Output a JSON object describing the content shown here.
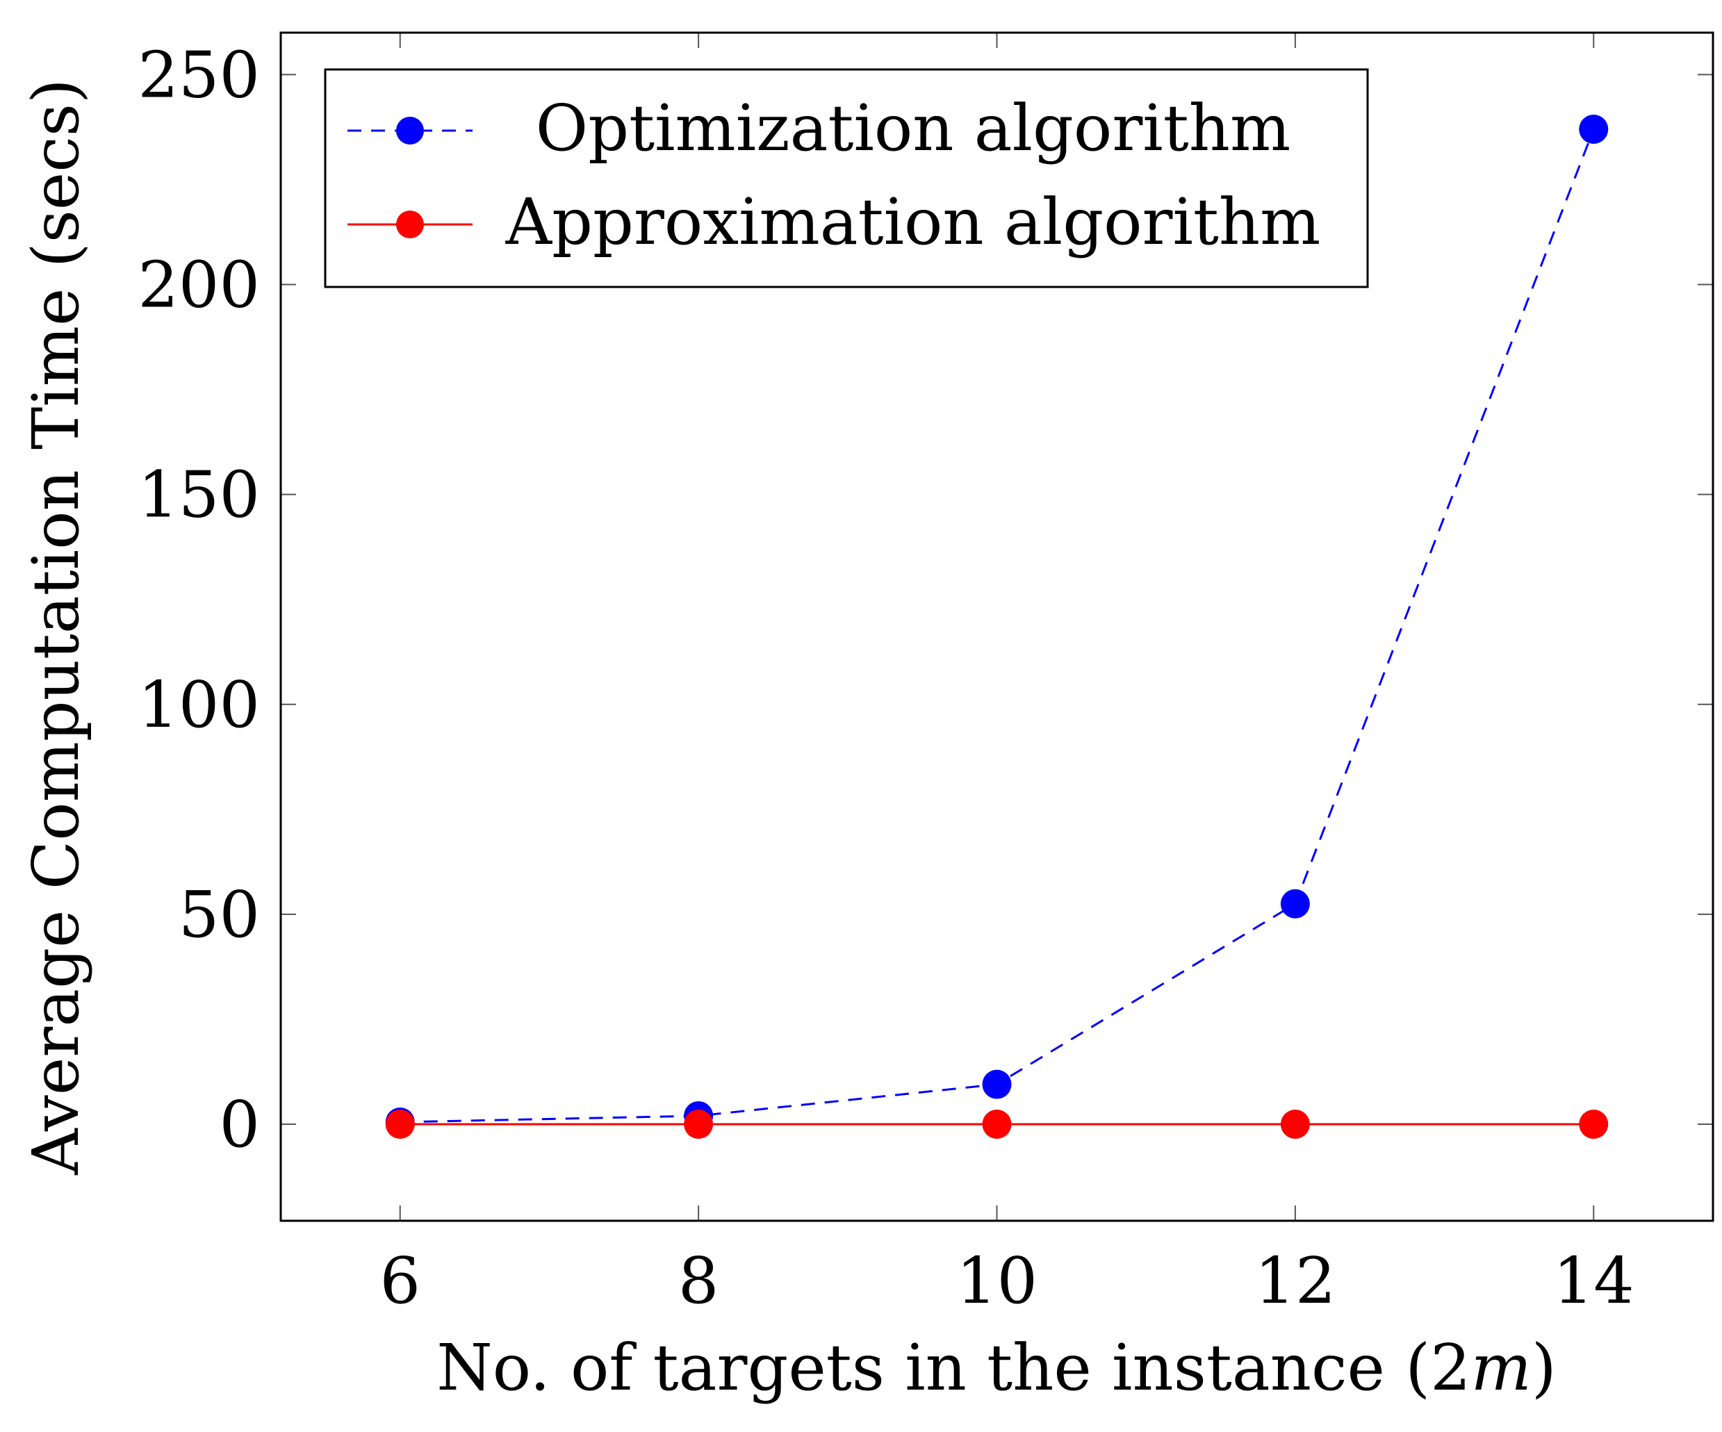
{
  "chart_data": {
    "type": "line",
    "title": "",
    "xlabel": "No. of targets in the instance (2m)",
    "xlabel_parts": {
      "prefix": "No. of targets in the instance (2",
      "italic": "m",
      "suffix": ")"
    },
    "ylabel": "Average Computation Time (secs)",
    "x": [
      6,
      8,
      10,
      12,
      14
    ],
    "xlim": [
      5.2,
      14.8
    ],
    "ylim": [
      -23,
      260
    ],
    "xticks": [
      6,
      8,
      10,
      12,
      14
    ],
    "yticks": [
      0,
      50,
      100,
      150,
      200,
      250
    ],
    "grid": false,
    "legend_position": "top-left",
    "series": [
      {
        "name": "Optimization algorithm",
        "values": [
          0.5,
          2,
          9.5,
          52.5,
          237
        ],
        "color": "#0000ff",
        "line_style": "dashed",
        "marker": "circle"
      },
      {
        "name": "Approximation algorithm",
        "values": [
          0,
          0,
          0,
          0,
          0
        ],
        "color": "#ff0000",
        "line_style": "solid",
        "marker": "circle"
      }
    ]
  }
}
